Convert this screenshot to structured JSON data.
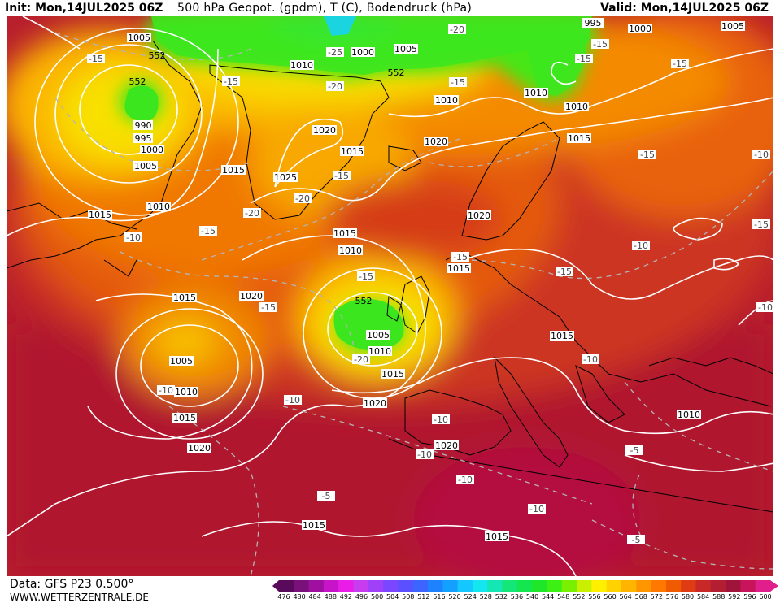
{
  "header": {
    "init": "Init: Mon,14JUL2025 06Z",
    "title": "500 hPa Geopot. (gpdm), T (C), Bodendruck (hPa)",
    "valid": "Valid: Mon,14JUL2025 06Z"
  },
  "footer": {
    "data_source": "Data: GFS P23 0.500°",
    "website": "WWW.WETTERZENTRALE.DE"
  },
  "colorbar": {
    "ticks": [
      "476",
      "480",
      "484",
      "488",
      "492",
      "496",
      "500",
      "504",
      "508",
      "512",
      "516",
      "520",
      "524",
      "528",
      "532",
      "536",
      "540",
      "544",
      "548",
      "552",
      "556",
      "560",
      "564",
      "568",
      "572",
      "576",
      "580",
      "584",
      "588",
      "592",
      "596",
      "600"
    ],
    "colors": [
      "#5a0a5a",
      "#7a107a",
      "#a010a0",
      "#c814c8",
      "#e81ee8",
      "#c83cf0",
      "#a040f8",
      "#7a46ff",
      "#5a50ff",
      "#3c64ff",
      "#1e82ff",
      "#14a0ff",
      "#14c8ff",
      "#14e6f0",
      "#14e6b4",
      "#14e678",
      "#14e650",
      "#1ee628",
      "#3cf014",
      "#78f000",
      "#c8f000",
      "#fff000",
      "#ffd200",
      "#ffb400",
      "#ff9600",
      "#ff7800",
      "#f05a00",
      "#e03c14",
      "#c82828",
      "#b41e32",
      "#a0143c",
      "#c8145a",
      "#e01e8c"
    ]
  },
  "map": {
    "pressure_labels": [
      {
        "text": "995"
      },
      {
        "text": "1000"
      },
      {
        "text": "1005"
      },
      {
        "text": "1005"
      },
      {
        "text": "1000"
      },
      {
        "text": "1010"
      },
      {
        "text": "552"
      },
      {
        "text": "552"
      },
      {
        "text": "552"
      },
      {
        "text": "1010"
      },
      {
        "text": "1005"
      },
      {
        "text": "1010"
      },
      {
        "text": "990"
      },
      {
        "text": "995"
      },
      {
        "text": "1000"
      },
      {
        "text": "1005"
      },
      {
        "text": "1010"
      },
      {
        "text": "1015"
      },
      {
        "text": "1020"
      },
      {
        "text": "1015"
      },
      {
        "text": "1025"
      },
      {
        "text": "1015"
      },
      {
        "text": "1020"
      },
      {
        "text": "1015"
      },
      {
        "text": "1020"
      },
      {
        "text": "1015"
      },
      {
        "text": "1010"
      },
      {
        "text": "552"
      },
      {
        "text": "1005"
      },
      {
        "text": "1010"
      },
      {
        "text": "1015"
      },
      {
        "text": "1015"
      },
      {
        "text": "1005"
      },
      {
        "text": "1010"
      },
      {
        "text": "1015"
      },
      {
        "text": "1020"
      },
      {
        "text": "1020"
      },
      {
        "text": "1020"
      },
      {
        "text": "1015"
      },
      {
        "text": "1015"
      },
      {
        "text": "1020"
      },
      {
        "text": "1010"
      },
      {
        "text": "1015"
      },
      {
        "text": "1015"
      },
      {
        "text": "1010"
      },
      {
        "text": "1005"
      }
    ],
    "temp_labels": [
      {
        "text": "-15"
      },
      {
        "text": "-15"
      },
      {
        "text": "-25"
      },
      {
        "text": "-20"
      },
      {
        "text": "-20"
      },
      {
        "text": "-15"
      },
      {
        "text": "-15"
      },
      {
        "text": "-15"
      },
      {
        "text": "-15"
      },
      {
        "text": "-15"
      },
      {
        "text": "-20"
      },
      {
        "text": "-20"
      },
      {
        "text": "-15"
      },
      {
        "text": "-10"
      },
      {
        "text": "-15"
      },
      {
        "text": "-15"
      },
      {
        "text": "-15"
      },
      {
        "text": "-20"
      },
      {
        "text": "-15"
      },
      {
        "text": "-15"
      },
      {
        "text": "-10"
      },
      {
        "text": "-10"
      },
      {
        "text": "-10"
      },
      {
        "text": "-10"
      },
      {
        "text": "-10"
      },
      {
        "text": "-5"
      },
      {
        "text": "-10"
      },
      {
        "text": "-10"
      },
      {
        "text": "-5"
      },
      {
        "text": "-5"
      },
      {
        "text": "-10"
      },
      {
        "text": "-10"
      },
      {
        "text": "-10"
      },
      {
        "text": "-15"
      }
    ]
  }
}
